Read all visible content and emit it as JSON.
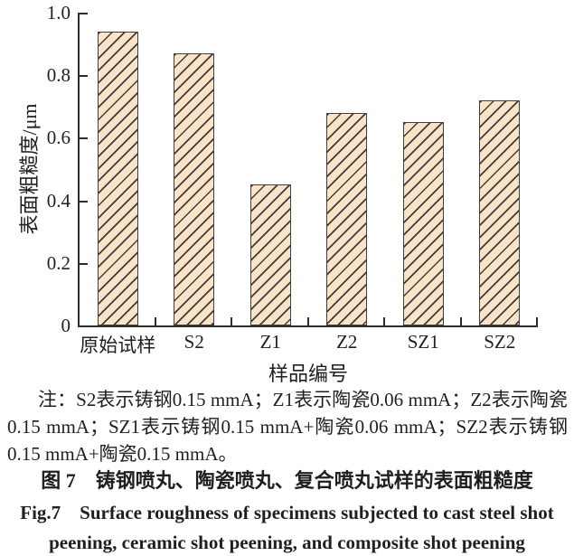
{
  "figure": {
    "note": "注：S2表示铸钢0.15 mmA；Z1表示陶瓷0.06 mmA；Z2表示陶瓷0.15 mmA；SZ1表示铸钢0.15 mmA+陶瓷0.06 mmA；SZ2表示铸钢0.15 mmA+陶瓷0.15 mmA。",
    "caption_cn": "图 7　铸钢喷丸、陶瓷喷丸、复合喷丸试样的表面粗糙度",
    "caption_en_line1": "Fig.7　Surface roughness of specimens subjected to cast steel shot",
    "caption_en_line2": "peening, ceramic shot peening, and composite shot peening"
  },
  "chart_data": {
    "type": "bar",
    "title": "",
    "categories": [
      "原始试样",
      "S2",
      "Z1",
      "Z2",
      "SZ1",
      "SZ2"
    ],
    "values": [
      0.94,
      0.87,
      0.45,
      0.68,
      0.65,
      0.72
    ],
    "xlabel": "样品编号",
    "ylabel": "表面粗糙度/μm",
    "ylim": [
      0,
      1.0
    ],
    "y_ticks": [
      0,
      0.2,
      0.4,
      0.6,
      0.8,
      1.0
    ],
    "y_tick_labels": [
      "0",
      "0.2",
      "0.4",
      "0.6",
      "0.8",
      "1.0"
    ],
    "grid": false,
    "legend": false,
    "bar_fill": "#fbe3c7",
    "bar_border": "#404040",
    "hatch": "forward-diagonal",
    "hatch_color": "#3c3c3c",
    "axis_color": "#2d2d2d"
  }
}
